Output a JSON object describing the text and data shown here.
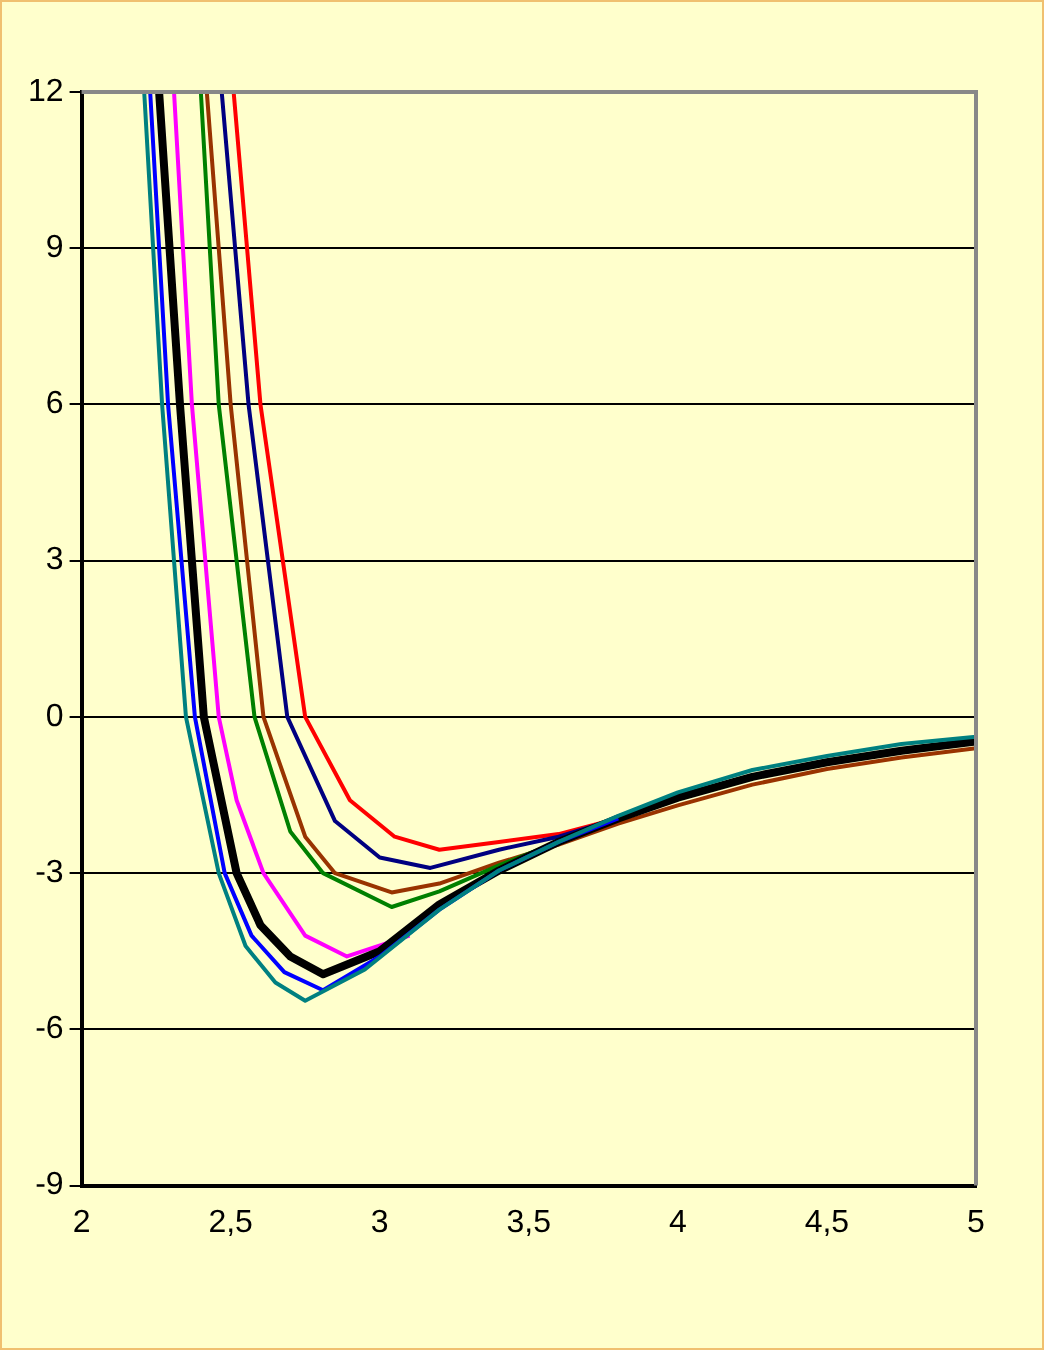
{
  "chart_data": {
    "type": "line",
    "xlim": [
      2,
      5
    ],
    "xticks": [
      2,
      {
        "value": 2.5,
        "label": "2,5"
      },
      3,
      {
        "value": 3.5,
        "label": "3,5"
      },
      4,
      {
        "value": 4.5,
        "label": "4,5"
      },
      5
    ],
    "ylim": [
      -9,
      12
    ],
    "yticks": [
      -9,
      -6,
      -3,
      0,
      3,
      6,
      9,
      12
    ],
    "grid": "y",
    "legend": false,
    "marker": "none",
    "line_style": "solid",
    "series": [
      {
        "color": "#ff0000",
        "x": [
          2.51,
          2.6,
          2.75,
          2.9,
          3.05,
          3.2,
          3.4,
          3.6,
          3.8
        ],
        "values": [
          12,
          6,
          0,
          -1.6,
          -2.3,
          -2.55,
          -2.4,
          -2.25,
          -1.95
        ]
      },
      {
        "color": "#000080",
        "x": [
          2.47,
          2.56,
          2.69,
          2.85,
          3.0,
          3.17,
          3.4,
          3.6,
          3.8
        ],
        "values": [
          12,
          6,
          0,
          -2.0,
          -2.7,
          -2.9,
          -2.55,
          -2.3,
          -1.95
        ]
      },
      {
        "color": "#993300",
        "x": [
          2.42,
          2.5,
          2.61,
          2.75,
          2.85,
          3.04,
          3.2,
          3.4,
          3.6,
          3.8,
          4,
          4.25,
          4.5,
          4.75,
          5
        ],
        "values": [
          12,
          6,
          0,
          -2.3,
          -3.0,
          -3.37,
          -3.2,
          -2.8,
          -2.45,
          -2.05,
          -1.7,
          -1.3,
          -1.0,
          -0.78,
          -0.6
        ]
      },
      {
        "color": "#008000",
        "x": [
          2.4,
          2.46,
          2.58,
          2.7,
          2.81,
          3.04,
          3.2,
          3.4,
          3.6,
          3.8
        ],
        "values": [
          12,
          6,
          0,
          -2.2,
          -3.0,
          -3.65,
          -3.35,
          -2.85,
          -2.4,
          -1.95
        ]
      },
      {
        "color": "#ff00ff",
        "x": [
          2.31,
          2.37,
          2.46,
          2.52,
          2.61,
          2.75,
          2.89,
          3.1
        ],
        "values": [
          12,
          6,
          0,
          -1.6,
          -3.0,
          -4.2,
          -4.6,
          -4.2
        ]
      },
      {
        "color": "#000000",
        "x": [
          2.26,
          2.33,
          2.41,
          2.52,
          2.6,
          2.7,
          2.81,
          3.0,
          3.2,
          3.4,
          3.6,
          3.8,
          4,
          4.25,
          4.5,
          4.75,
          5
        ],
        "values": [
          12,
          6,
          0,
          -3.0,
          -4.0,
          -4.6,
          -4.94,
          -4.5,
          -3.6,
          -2.95,
          -2.4,
          -1.95,
          -1.55,
          -1.15,
          -0.87,
          -0.65,
          -0.47
        ]
      },
      {
        "color": "#0000ff",
        "x": [
          2.23,
          2.29,
          2.38,
          2.48,
          2.57,
          2.68,
          2.81,
          3.0,
          3.2,
          3.4,
          3.6,
          3.8
        ],
        "values": [
          12,
          6,
          0,
          -3.0,
          -4.2,
          -4.9,
          -5.25,
          -4.6,
          -3.7,
          -2.95,
          -2.4,
          -1.95
        ]
      },
      {
        "color": "#008080",
        "x": [
          2.21,
          2.27,
          2.35,
          2.46,
          2.55,
          2.65,
          2.75,
          2.95,
          3.2,
          3.4,
          3.6,
          3.8,
          4,
          4.25,
          4.5,
          4.75,
          5
        ],
        "values": [
          12,
          6,
          0,
          -3.0,
          -4.4,
          -5.1,
          -5.45,
          -4.85,
          -3.7,
          -2.95,
          -2.4,
          -1.9,
          -1.45,
          -1.02,
          -0.75,
          -0.52,
          -0.38
        ]
      }
    ]
  }
}
